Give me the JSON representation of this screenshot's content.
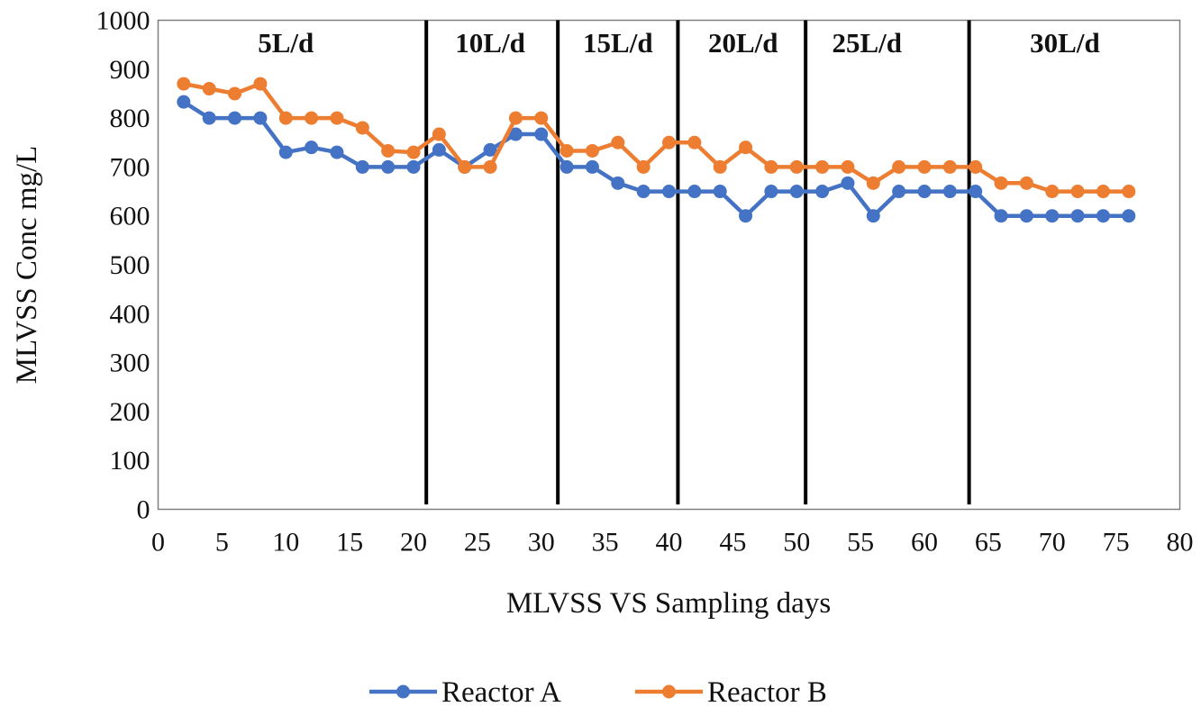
{
  "chart_data": {
    "type": "line",
    "title": "",
    "xlabel": "MLVSS VS Sampling days",
    "ylabel": "MLVSS Conc mg/L",
    "xlim": [
      0,
      80
    ],
    "ylim": [
      0,
      1000
    ],
    "xticks": [
      0,
      5,
      10,
      15,
      20,
      25,
      30,
      35,
      40,
      45,
      50,
      55,
      60,
      65,
      70,
      75,
      80
    ],
    "yticks": [
      0,
      100,
      200,
      300,
      400,
      500,
      600,
      700,
      800,
      900,
      1000
    ],
    "grid": false,
    "legend_position": "bottom",
    "x": [
      2,
      4,
      6,
      8,
      10,
      12,
      14,
      16,
      18,
      20,
      22,
      24,
      26,
      28,
      30,
      32,
      34,
      36,
      38,
      40,
      42,
      44,
      46,
      48,
      50,
      52,
      54,
      56,
      58,
      60,
      62,
      64,
      66,
      68,
      70,
      72,
      74,
      76
    ],
    "series": [
      {
        "name": "Reactor A",
        "color": "#4472C4",
        "values": [
          833,
          800,
          800,
          800,
          730,
          740,
          730,
          700,
          700,
          700,
          735,
          700,
          735,
          767,
          767,
          700,
          700,
          667,
          650,
          650,
          650,
          650,
          600,
          650,
          650,
          650,
          667,
          600,
          650,
          650,
          650,
          650,
          600,
          600,
          600,
          600,
          600,
          600
        ]
      },
      {
        "name": "Reactor B",
        "color": "#ED7D31",
        "values": [
          870,
          860,
          850,
          870,
          800,
          800,
          800,
          780,
          733,
          730,
          767,
          700,
          700,
          800,
          800,
          733,
          733,
          750,
          700,
          750,
          750,
          700,
          740,
          700,
          700,
          700,
          700,
          667,
          700,
          700,
          700,
          700,
          667,
          667,
          650,
          650,
          650,
          650
        ]
      }
    ],
    "phase_dividers": [
      21,
      31.3,
      40.7,
      50.7,
      63.5
    ],
    "phase_labels": [
      {
        "text": "5L/d",
        "x": 10
      },
      {
        "text": "10L/d",
        "x": 26
      },
      {
        "text": "15L/d",
        "x": 36
      },
      {
        "text": "20L/d",
        "x": 45.8
      },
      {
        "text": "25L/d",
        "x": 55.5
      },
      {
        "text": "30L/d",
        "x": 71
      }
    ],
    "phase_label_y": 935,
    "divider_bottom": 10
  }
}
